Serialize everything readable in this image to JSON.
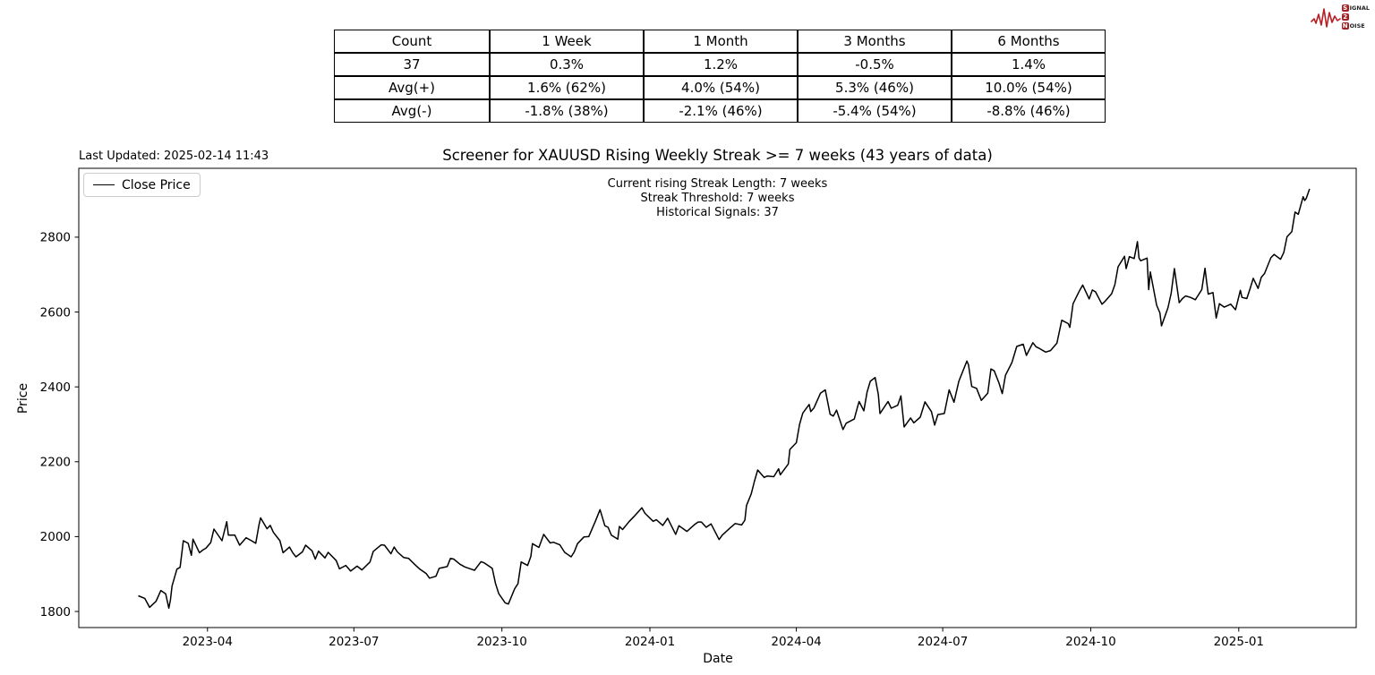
{
  "logo": {
    "badge1": "S",
    "word1_rest": "IGNAL",
    "badge2": "2",
    "badge3": "N",
    "word3_rest": "OISE"
  },
  "stats_table": {
    "headers": [
      "Count",
      "1 Week",
      "1 Month",
      "3 Months",
      "6 Months"
    ],
    "rows": [
      [
        "37",
        "0.3%",
        "1.2%",
        "-0.5%",
        "1.4%"
      ],
      [
        "Avg(+)",
        "1.6% (62%)",
        "4.0% (54%)",
        "5.3% (46%)",
        "10.0% (54%)"
      ],
      [
        "Avg(-)",
        "-1.8% (38%)",
        "-2.1% (46%)",
        "-5.4% (54%)",
        "-8.8% (46%)"
      ]
    ]
  },
  "chart": {
    "last_updated": "Last Updated: 2025-02-14 11:43",
    "title": "Screener for XAUUSD Rising Weekly Streak >= 7 weeks (43 years of data)",
    "annotations": [
      "Current rising Streak Length: 7 weeks",
      "Streak Threshold: 7 weeks",
      "Historical Signals: 37"
    ],
    "legend_label": "Close Price",
    "xlabel": "Date",
    "ylabel": "Price"
  },
  "chart_data": {
    "type": "line",
    "title": "Screener for XAUUSD Rising Weekly Streak >= 7 weeks (43 years of data)",
    "xlabel": "Date",
    "ylabel": "Price",
    "grid": false,
    "legend_position": "upper left",
    "line_color": "#000000",
    "xlim": [
      "2023-01-11",
      "2025-03-15"
    ],
    "ylim": [
      1757,
      2984
    ],
    "y_ticks": [
      1800,
      2000,
      2200,
      2400,
      2600,
      2800
    ],
    "x_ticks": [
      {
        "label": "2023-04",
        "date": "2023-04-01"
      },
      {
        "label": "2023-07",
        "date": "2023-07-01"
      },
      {
        "label": "2023-10",
        "date": "2023-10-01"
      },
      {
        "label": "2024-01",
        "date": "2024-01-01"
      },
      {
        "label": "2024-04",
        "date": "2024-04-01"
      },
      {
        "label": "2024-07",
        "date": "2024-07-01"
      },
      {
        "label": "2024-10",
        "date": "2024-10-01"
      },
      {
        "label": "2025-01",
        "date": "2025-01-01"
      }
    ],
    "series": [
      {
        "name": "Close Price",
        "x": [
          "2023-02-17",
          "2023-02-21",
          "2023-02-24",
          "2023-02-28",
          "2023-03-03",
          "2023-03-06",
          "2023-03-08",
          "2023-03-09",
          "2023-03-10",
          "2023-03-13",
          "2023-03-15",
          "2023-03-17",
          "2023-03-20",
          "2023-03-22",
          "2023-03-23",
          "2023-03-27",
          "2023-03-29",
          "2023-03-31",
          "2023-04-03",
          "2023-04-05",
          "2023-04-10",
          "2023-04-13",
          "2023-04-14",
          "2023-04-18",
          "2023-04-21",
          "2023-04-25",
          "2023-04-28",
          "2023-05-01",
          "2023-05-03",
          "2023-05-04",
          "2023-05-08",
          "2023-05-10",
          "2023-05-12",
          "2023-05-16",
          "2023-05-18",
          "2023-05-22",
          "2023-05-24",
          "2023-05-26",
          "2023-05-30",
          "2023-06-01",
          "2023-06-05",
          "2023-06-07",
          "2023-06-09",
          "2023-06-13",
          "2023-06-15",
          "2023-06-20",
          "2023-06-22",
          "2023-06-26",
          "2023-06-29",
          "2023-07-03",
          "2023-07-06",
          "2023-07-11",
          "2023-07-13",
          "2023-07-18",
          "2023-07-20",
          "2023-07-24",
          "2023-07-26",
          "2023-07-28",
          "2023-08-01",
          "2023-08-04",
          "2023-08-08",
          "2023-08-11",
          "2023-08-15",
          "2023-08-17",
          "2023-08-21",
          "2023-08-23",
          "2023-08-28",
          "2023-08-30",
          "2023-09-01",
          "2023-09-05",
          "2023-09-08",
          "2023-09-12",
          "2023-09-14",
          "2023-09-18",
          "2023-09-20",
          "2023-09-25",
          "2023-09-27",
          "2023-09-29",
          "2023-10-03",
          "2023-10-05",
          "2023-10-09",
          "2023-10-11",
          "2023-10-13",
          "2023-10-17",
          "2023-10-19",
          "2023-10-20",
          "2023-10-24",
          "2023-10-27",
          "2023-10-31",
          "2023-11-02",
          "2023-11-06",
          "2023-11-09",
          "2023-11-13",
          "2023-11-15",
          "2023-11-17",
          "2023-11-21",
          "2023-11-24",
          "2023-11-28",
          "2023-12-01",
          "2023-12-04",
          "2023-12-06",
          "2023-12-08",
          "2023-12-12",
          "2023-12-13",
          "2023-12-15",
          "2023-12-19",
          "2023-12-22",
          "2023-12-27",
          "2023-12-29",
          "2024-01-03",
          "2024-01-05",
          "2024-01-09",
          "2024-01-12",
          "2024-01-17",
          "2024-01-19",
          "2024-01-24",
          "2024-01-29",
          "2024-01-31",
          "2024-02-02",
          "2024-02-05",
          "2024-02-08",
          "2024-02-13",
          "2024-02-15",
          "2024-02-20",
          "2024-02-23",
          "2024-02-27",
          "2024-02-29",
          "2024-03-01",
          "2024-03-04",
          "2024-03-06",
          "2024-03-08",
          "2024-03-12",
          "2024-03-14",
          "2024-03-18",
          "2024-03-21",
          "2024-03-22",
          "2024-03-27",
          "2024-03-28",
          "2024-04-01",
          "2024-04-03",
          "2024-04-05",
          "2024-04-09",
          "2024-04-10",
          "2024-04-12",
          "2024-04-16",
          "2024-04-19",
          "2024-04-22",
          "2024-04-24",
          "2024-04-26",
          "2024-04-30",
          "2024-05-02",
          "2024-05-07",
          "2024-05-09",
          "2024-05-10",
          "2024-05-13",
          "2024-05-15",
          "2024-05-17",
          "2024-05-20",
          "2024-05-22",
          "2024-05-23",
          "2024-05-28",
          "2024-05-30",
          "2024-06-03",
          "2024-06-05",
          "2024-06-07",
          "2024-06-11",
          "2024-06-13",
          "2024-06-17",
          "2024-06-20",
          "2024-06-24",
          "2024-06-26",
          "2024-06-28",
          "2024-07-02",
          "2024-07-05",
          "2024-07-08",
          "2024-07-11",
          "2024-07-16",
          "2024-07-17",
          "2024-07-19",
          "2024-07-22",
          "2024-07-25",
          "2024-07-29",
          "2024-07-31",
          "2024-08-02",
          "2024-08-05",
          "2024-08-07",
          "2024-08-09",
          "2024-08-13",
          "2024-08-16",
          "2024-08-20",
          "2024-08-22",
          "2024-08-26",
          "2024-08-28",
          "2024-08-30",
          "2024-09-03",
          "2024-09-06",
          "2024-09-10",
          "2024-09-12",
          "2024-09-13",
          "2024-09-17",
          "2024-09-18",
          "2024-09-20",
          "2024-09-24",
          "2024-09-26",
          "2024-09-30",
          "2024-10-02",
          "2024-10-04",
          "2024-10-08",
          "2024-10-10",
          "2024-10-14",
          "2024-10-16",
          "2024-10-18",
          "2024-10-22",
          "2024-10-23",
          "2024-10-25",
          "2024-10-28",
          "2024-10-30",
          "2024-10-31",
          "2024-11-01",
          "2024-11-05",
          "2024-11-06",
          "2024-11-07",
          "2024-11-11",
          "2024-11-13",
          "2024-11-14",
          "2024-11-18",
          "2024-11-20",
          "2024-11-22",
          "2024-11-25",
          "2024-11-27",
          "2024-11-29",
          "2024-12-02",
          "2024-12-05",
          "2024-12-09",
          "2024-12-11",
          "2024-12-12",
          "2024-12-13",
          "2024-12-16",
          "2024-12-18",
          "2024-12-20",
          "2024-12-23",
          "2024-12-27",
          "2024-12-30",
          "2025-01-02",
          "2025-01-03",
          "2025-01-06",
          "2025-01-08",
          "2025-01-10",
          "2025-01-13",
          "2025-01-15",
          "2025-01-17",
          "2025-01-21",
          "2025-01-23",
          "2025-01-27",
          "2025-01-29",
          "2025-01-31",
          "2025-02-03",
          "2025-02-05",
          "2025-02-07",
          "2025-02-10",
          "2025-02-11",
          "2025-02-12",
          "2025-02-14"
        ],
        "y": [
          1842,
          1835,
          1811,
          1827,
          1856,
          1847,
          1809,
          1831,
          1868,
          1913,
          1918,
          1989,
          1982,
          1950,
          1993,
          1957,
          1964,
          1969,
          1984,
          2020,
          1989,
          2040,
          2004,
          2004,
          1977,
          1997,
          1990,
          1982,
          2031,
          2050,
          2021,
          2030,
          2011,
          1989,
          1957,
          1972,
          1957,
          1946,
          1959,
          1977,
          1962,
          1940,
          1961,
          1943,
          1958,
          1936,
          1914,
          1923,
          1908,
          1921,
          1911,
          1932,
          1960,
          1978,
          1977,
          1954,
          1972,
          1959,
          1944,
          1942,
          1925,
          1913,
          1901,
          1889,
          1894,
          1915,
          1920,
          1942,
          1940,
          1926,
          1919,
          1913,
          1910,
          1933,
          1930,
          1915,
          1875,
          1848,
          1823,
          1820,
          1861,
          1874,
          1932,
          1923,
          1947,
          1981,
          1971,
          2006,
          1983,
          1985,
          1978,
          1958,
          1946,
          1959,
          1981,
          1999,
          2000,
          2040,
          2072,
          2029,
          2025,
          2004,
          1993,
          2027,
          2019,
          2040,
          2053,
          2077,
          2062,
          2041,
          2045,
          2030,
          2049,
          2006,
          2029,
          2014,
          2033,
          2039,
          2039,
          2025,
          2034,
          1992,
          2004,
          2024,
          2035,
          2031,
          2044,
          2083,
          2114,
          2148,
          2178,
          2158,
          2162,
          2160,
          2181,
          2165,
          2194,
          2233,
          2251,
          2300,
          2330,
          2353,
          2334,
          2344,
          2383,
          2392,
          2327,
          2322,
          2338,
          2286,
          2303,
          2314,
          2346,
          2361,
          2336,
          2386,
          2415,
          2425,
          2379,
          2329,
          2361,
          2343,
          2351,
          2376,
          2293,
          2317,
          2304,
          2319,
          2360,
          2334,
          2298,
          2326,
          2329,
          2392,
          2359,
          2415,
          2469,
          2459,
          2401,
          2396,
          2364,
          2383,
          2448,
          2443,
          2410,
          2382,
          2431,
          2465,
          2508,
          2514,
          2484,
          2518,
          2507,
          2503,
          2493,
          2497,
          2517,
          2558,
          2578,
          2569,
          2559,
          2622,
          2657,
          2672,
          2635,
          2659,
          2654,
          2621,
          2629,
          2649,
          2673,
          2721,
          2749,
          2716,
          2748,
          2743,
          2788,
          2744,
          2737,
          2744,
          2660,
          2707,
          2618,
          2598,
          2563,
          2611,
          2650,
          2716,
          2625,
          2636,
          2643,
          2639,
          2633,
          2660,
          2717,
          2681,
          2648,
          2652,
          2584,
          2622,
          2613,
          2621,
          2606,
          2658,
          2639,
          2636,
          2662,
          2690,
          2663,
          2693,
          2703,
          2745,
          2754,
          2741,
          2759,
          2801,
          2815,
          2867,
          2861,
          2908,
          2898,
          2904,
          2929
        ]
      }
    ]
  }
}
